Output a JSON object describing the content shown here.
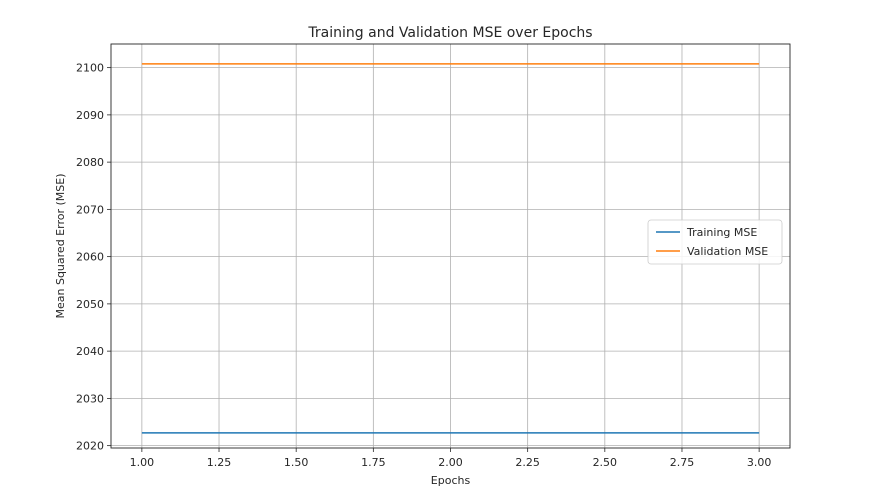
{
  "chart_data": {
    "type": "line",
    "title": "Training and Validation MSE over Epochs",
    "xlabel": "Epochs",
    "ylabel": "Mean Squared Error (MSE)",
    "xlim": [
      0.9,
      3.1
    ],
    "ylim": [
      2019.5,
      2105
    ],
    "xticks": [
      1.0,
      1.25,
      1.5,
      1.75,
      2.0,
      2.25,
      2.5,
      2.75,
      3.0
    ],
    "xtick_labels": [
      "1.00",
      "1.25",
      "1.50",
      "1.75",
      "2.00",
      "2.25",
      "2.50",
      "2.75",
      "3.00"
    ],
    "yticks": [
      2020,
      2030,
      2040,
      2050,
      2060,
      2070,
      2080,
      2090,
      2100
    ],
    "ytick_labels": [
      "2020",
      "2030",
      "2040",
      "2050",
      "2060",
      "2070",
      "2080",
      "2090",
      "2100"
    ],
    "grid": true,
    "legend_position": "center-right",
    "x": [
      1,
      2,
      3
    ],
    "series": [
      {
        "name": "Training MSE",
        "values": [
          2022.7,
          2022.7,
          2022.7
        ],
        "color": "#1f77b4"
      },
      {
        "name": "Validation MSE",
        "values": [
          2100.8,
          2100.8,
          2100.8
        ],
        "color": "#ff7f0e"
      }
    ]
  }
}
